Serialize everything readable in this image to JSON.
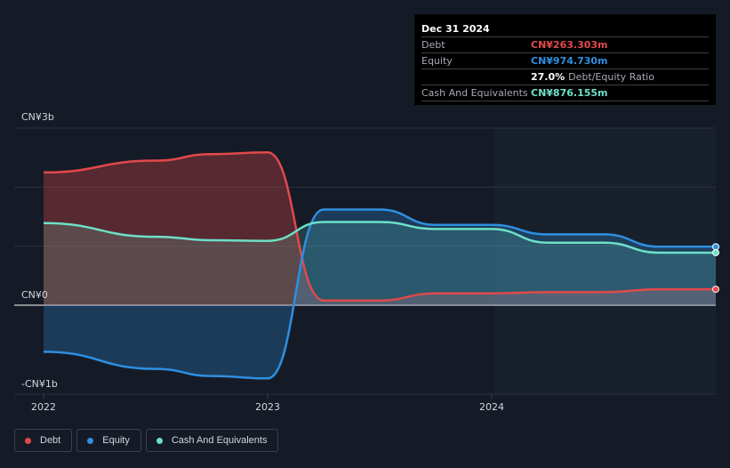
{
  "tooltip": {
    "date": "Dec 31 2024",
    "rows": [
      {
        "label": "Debt",
        "value": "CN¥263.303m",
        "color": "#e2494b"
      },
      {
        "label": "Equity",
        "value": "CN¥974.730m",
        "color": "#2e8fe0"
      },
      {
        "label": "",
        "value": "27.0%",
        "extra": "Debt/Equity Ratio",
        "color": "#ffffff"
      },
      {
        "label": "Cash And Equivalents",
        "value": "CN¥876.155m",
        "color": "#6ee0c8"
      }
    ]
  },
  "legend": [
    {
      "label": "Debt",
      "color": "#e2494b"
    },
    {
      "label": "Equity",
      "color": "#2e8fe0"
    },
    {
      "label": "Cash And Equivalents",
      "color": "#6ee0c8"
    }
  ],
  "chart_data": {
    "type": "area",
    "ylim": [
      -1.5,
      3
    ],
    "y_ticks": [
      {
        "value": 3,
        "label": "CN¥3b"
      },
      {
        "value": 0,
        "label": "CN¥0"
      },
      {
        "value": -1.35,
        "label": "-CN¥1b"
      }
    ],
    "x_ticks": [
      {
        "value": 2022.0,
        "label": "2022"
      },
      {
        "value": 2023.0,
        "label": "2023"
      },
      {
        "value": 2024.0,
        "label": "2024"
      }
    ],
    "xlim": [
      2021.87,
      2025.0
    ],
    "series": [
      {
        "name": "Debt",
        "color": "#e2494b",
        "x": [
          2022.0,
          2022.5,
          2022.75,
          2023.0,
          2023.25,
          2023.5,
          2023.75,
          2024.0,
          2024.25,
          2024.5,
          2024.75,
          2025.0
        ],
        "values": [
          2.25,
          2.45,
          2.56,
          2.59,
          0.08,
          0.08,
          0.2,
          0.2,
          0.22,
          0.22,
          0.27,
          0.27
        ]
      },
      {
        "name": "Equity",
        "color": "#2e8fe0",
        "x": [
          2022.0,
          2022.5,
          2022.75,
          2023.0,
          2023.25,
          2023.5,
          2023.75,
          2024.0,
          2024.25,
          2024.5,
          2024.75,
          2025.0
        ],
        "values": [
          -0.79,
          -1.08,
          -1.2,
          -1.24,
          1.62,
          1.62,
          1.36,
          1.36,
          1.2,
          1.2,
          0.99,
          0.99
        ]
      },
      {
        "name": "Cash And Equivalents",
        "color": "#6ee0c8",
        "x": [
          2022.0,
          2022.5,
          2022.75,
          2023.0,
          2023.25,
          2023.5,
          2023.75,
          2024.0,
          2024.25,
          2024.5,
          2024.75,
          2025.0
        ],
        "values": [
          1.39,
          1.16,
          1.1,
          1.09,
          1.41,
          1.41,
          1.29,
          1.29,
          1.06,
          1.06,
          0.89,
          0.89
        ]
      }
    ]
  }
}
